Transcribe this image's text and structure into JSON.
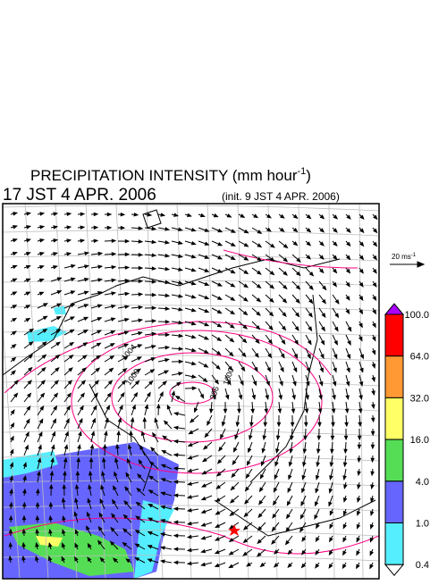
{
  "header": {
    "title": "PRECIPITATION INTENSITY (mm hour",
    "title_sup": "-1",
    "title_end": ")",
    "time": "17 JST 4 APR. 2006",
    "init": "(init. 9 JST 4 APR. 2006)"
  },
  "vector_legend": {
    "label": "20 ms",
    "label_sup": "-1"
  },
  "contour_labels": [
    "1004",
    "1000",
    "996",
    "1000"
  ],
  "colorbar": {
    "labels": [
      "100.0",
      "64.0",
      "32.0",
      "16.0",
      "4.0",
      "1.0",
      "0.4"
    ],
    "colors": [
      "#aa00ff",
      "#ff0000",
      "#ff9933",
      "#ffff66",
      "#55dd55",
      "#6666ff",
      "#55eeff",
      "#ffffff"
    ]
  }
}
